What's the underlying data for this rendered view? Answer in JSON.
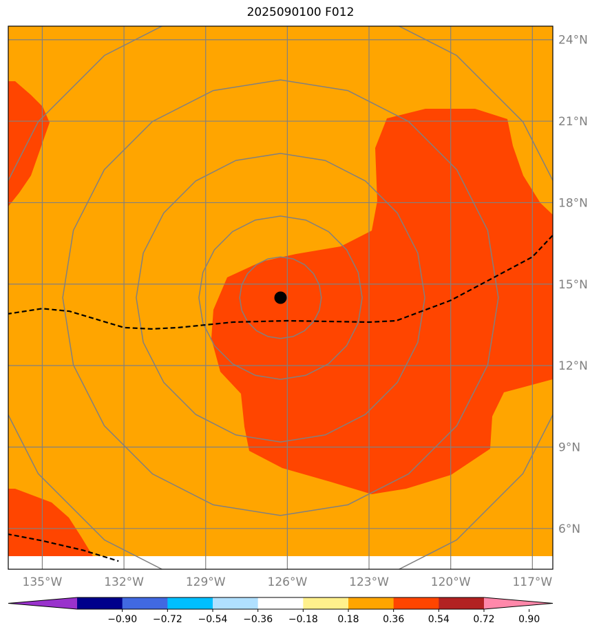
{
  "map": {
    "title": "2025090100 F012",
    "lon_range": [
      -136.25,
      -116.25
    ],
    "lat_range": [
      4.5,
      24.5
    ],
    "background_color": "#ffa500",
    "field_color": "#ff4500",
    "grid_color": "#808080",
    "storm_center": {
      "lon": -126.25,
      "lat": 14.5
    },
    "longitudes": [
      -135,
      -132,
      -129,
      -126,
      -123,
      -120,
      -117
    ],
    "lon_labels": [
      "135°W",
      "132°W",
      "129°W",
      "126°W",
      "123°W",
      "120°W",
      "117°W"
    ],
    "latitudes": [
      6,
      9,
      12,
      15,
      18,
      21,
      24
    ],
    "lat_labels": [
      "6°N",
      "9°N",
      "12°N",
      "15°N",
      "18°N",
      "21°N",
      "24°N"
    ],
    "range_rings_deg": [
      1.5,
      3,
      5.3,
      8,
      11
    ],
    "track_main": [
      [
        -136.3,
        13.9
      ],
      [
        -135.0,
        14.1
      ],
      [
        -134.0,
        14.0
      ],
      [
        -132.0,
        13.4
      ],
      [
        -131.0,
        13.35
      ],
      [
        -130.0,
        13.4
      ],
      [
        -129.0,
        13.5
      ],
      [
        -128.0,
        13.6
      ],
      [
        -126.0,
        13.65
      ],
      [
        -123.0,
        13.6
      ],
      [
        -122.0,
        13.65
      ],
      [
        -120.0,
        14.4
      ],
      [
        -118.5,
        15.2
      ],
      [
        -117.0,
        16.0
      ],
      [
        -116.25,
        16.8
      ]
    ],
    "track_secondary": [
      [
        -136.3,
        5.8
      ],
      [
        -135.0,
        5.55
      ],
      [
        -133.5,
        5.2
      ],
      [
        -132.2,
        4.8
      ]
    ]
  },
  "colorbar": {
    "colors": [
      "#9932cc",
      "#00008b",
      "#4169e1",
      "#00bfff",
      "#b0e0ff",
      "#ffffff",
      "#fff08c",
      "#ffa500",
      "#ff4500",
      "#b22222",
      "#ff88aa"
    ],
    "tick_labels": [
      "−0.90",
      "−0.72",
      "−0.54",
      "−0.36",
      "−0.18",
      "0.18",
      "0.36",
      "0.54",
      "0.72",
      "0.90"
    ]
  }
}
